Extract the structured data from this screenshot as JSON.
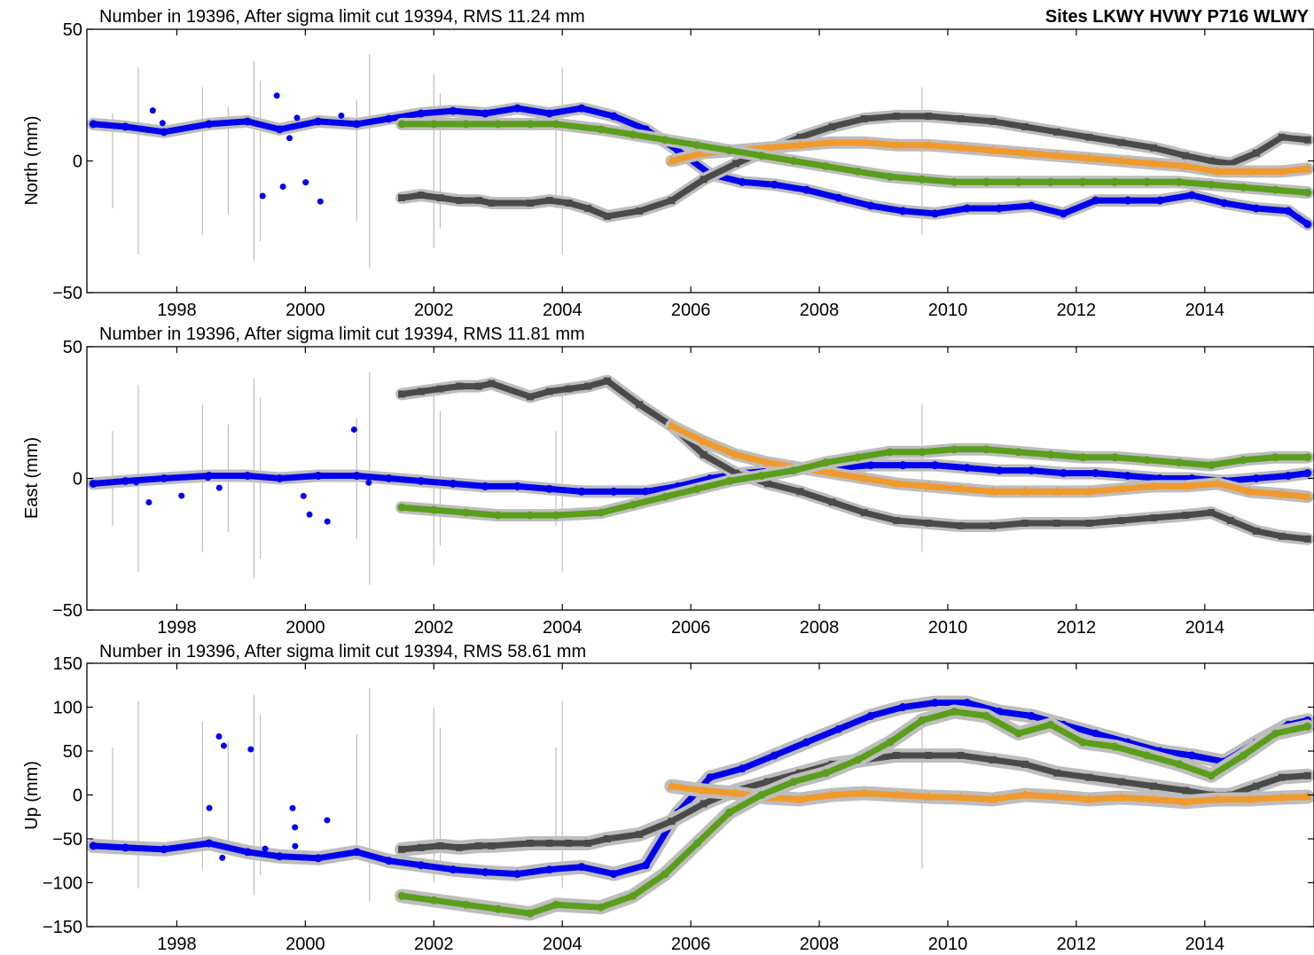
{
  "figure_title": "Sites LKWY HVWY P716 WLWY",
  "colors": {
    "LKWY": "#0000ee",
    "HVWY": "#4a4a4a",
    "P716": "#f09a2e",
    "WLWY": "#5a9e1c",
    "error_bar": "#bdbdbd",
    "frame": "#000000"
  },
  "chart_data": [
    {
      "type": "scatter",
      "title": "Number in  19396, After sigma limit cut  19394, RMS  11.24 mm",
      "ylabel": "North (mm)",
      "xlim": [
        1996.6,
        2015.7
      ],
      "ylim": [
        -50,
        50
      ],
      "xticks": [
        1998,
        2000,
        2002,
        2004,
        2006,
        2008,
        2010,
        2012,
        2014
      ],
      "yticks": [
        -50,
        0,
        50
      ],
      "grid": false,
      "series": [
        {
          "marker": "circle",
          "color_key": "LKWY",
          "x": [
            1996.7,
            1997.2,
            1997.8,
            1998.5,
            1999.1,
            1999.6,
            2000.2,
            2000.8,
            2001.3,
            2001.8,
            2002.3,
            2002.8,
            2003.3,
            2003.8,
            2004.3,
            2004.8,
            2005.3,
            2005.8,
            2006.3,
            2006.8,
            2007.3,
            2007.8,
            2008.3,
            2008.8,
            2009.3,
            2009.8,
            2010.3,
            2010.8,
            2011.3,
            2011.8,
            2012.3,
            2012.8,
            2013.3,
            2013.8,
            2014.3,
            2014.8,
            2015.3,
            2015.6
          ],
          "y": [
            14,
            13,
            11,
            14,
            15,
            12,
            15,
            14,
            16,
            18,
            19,
            18,
            20,
            18,
            20,
            17,
            12,
            4,
            -5,
            -8,
            -9,
            -11,
            -14,
            -17,
            -19,
            -20,
            -18,
            -18,
            -17,
            -20,
            -15,
            -15,
            -15,
            -13,
            -16,
            -18,
            -19,
            -24
          ]
        },
        {
          "marker": "square",
          "color_key": "HVWY",
          "x": [
            2001.5,
            2001.8,
            2002.1,
            2002.4,
            2002.7,
            2002.9,
            2003.5,
            2003.8,
            2004.1,
            2004.4,
            2004.7,
            2005.2,
            2005.7,
            2006.2,
            2006.7,
            2007.2,
            2007.7,
            2008.2,
            2008.7,
            2009.2,
            2009.7,
            2010.2,
            2010.7,
            2011.2,
            2011.7,
            2012.2,
            2012.7,
            2013.2,
            2013.7,
            2014.1,
            2014.4,
            2014.8,
            2015.2,
            2015.6
          ],
          "y": [
            -14,
            -13,
            -14,
            -15,
            -15,
            -16,
            -16,
            -15,
            -16,
            -18,
            -21,
            -19,
            -15,
            -7,
            -1,
            4,
            9,
            13,
            16,
            17,
            17,
            16,
            15,
            13,
            11,
            9,
            7,
            5,
            2,
            0,
            -1,
            3,
            9,
            8
          ]
        },
        {
          "marker": "triangle",
          "color_key": "P716",
          "x": [
            2005.7,
            2006.2,
            2006.7,
            2007.2,
            2007.7,
            2008.2,
            2008.7,
            2009.2,
            2009.7,
            2010.2,
            2010.7,
            2011.2,
            2011.7,
            2012.2,
            2012.7,
            2013.2,
            2013.7,
            2014.2,
            2014.7,
            2015.2,
            2015.6
          ],
          "y": [
            0,
            3,
            4,
            5,
            6,
            7,
            7,
            6,
            6,
            5,
            4,
            3,
            2,
            1,
            0,
            -1,
            -2,
            -4,
            -4,
            -4,
            -3
          ]
        },
        {
          "marker": "circle",
          "color_key": "WLWY",
          "x": [
            2001.5,
            2002.0,
            2002.5,
            2003.0,
            2003.5,
            2003.9,
            2004.6,
            2005.1,
            2005.6,
            2006.1,
            2006.6,
            2007.1,
            2007.6,
            2008.1,
            2008.6,
            2009.1,
            2009.6,
            2010.1,
            2010.6,
            2011.1,
            2011.6,
            2012.1,
            2012.6,
            2013.1,
            2013.6,
            2014.1,
            2014.6,
            2015.1,
            2015.6
          ],
          "y": [
            14,
            14,
            14,
            14,
            14,
            14,
            12,
            10,
            8,
            6,
            4,
            2,
            0,
            -2,
            -4,
            -6,
            -7,
            -8,
            -8,
            -8,
            -8,
            -8,
            -8,
            -8,
            -8,
            -9,
            -10,
            -11,
            -12
          ]
        }
      ]
    },
    {
      "type": "scatter",
      "title": "Number in  19396, After sigma limit cut  19394, RMS  11.81 mm",
      "ylabel": "East  (mm)",
      "xlim": [
        1996.6,
        2015.7
      ],
      "ylim": [
        -50,
        50
      ],
      "xticks": [
        1998,
        2000,
        2002,
        2004,
        2006,
        2008,
        2010,
        2012,
        2014
      ],
      "yticks": [
        -50,
        0,
        50
      ],
      "grid": false,
      "series": [
        {
          "marker": "circle",
          "color_key": "LKWY",
          "x": [
            1996.7,
            1997.2,
            1997.8,
            1998.5,
            1999.1,
            1999.6,
            2000.2,
            2000.8,
            2001.3,
            2001.8,
            2002.3,
            2002.8,
            2003.3,
            2003.8,
            2004.3,
            2004.8,
            2005.3,
            2005.8,
            2006.3,
            2006.8,
            2007.3,
            2007.8,
            2008.3,
            2008.8,
            2009.3,
            2009.8,
            2010.3,
            2010.8,
            2011.3,
            2011.8,
            2012.3,
            2012.8,
            2013.3,
            2013.8,
            2014.3,
            2014.8,
            2015.3,
            2015.6
          ],
          "y": [
            -2,
            -1,
            0,
            1,
            1,
            0,
            1,
            1,
            0,
            -1,
            -2,
            -3,
            -3,
            -4,
            -5,
            -5,
            -5,
            -3,
            0,
            2,
            3,
            4,
            4,
            5,
            5,
            5,
            4,
            3,
            3,
            2,
            2,
            1,
            0,
            0,
            -1,
            0,
            1,
            2
          ]
        },
        {
          "marker": "square",
          "color_key": "HVWY",
          "x": [
            2001.5,
            2001.8,
            2002.1,
            2002.4,
            2002.7,
            2002.9,
            2003.5,
            2003.8,
            2004.1,
            2004.4,
            2004.7,
            2005.2,
            2005.7,
            2006.2,
            2006.7,
            2007.2,
            2007.7,
            2008.2,
            2008.7,
            2009.2,
            2009.7,
            2010.2,
            2010.7,
            2011.2,
            2011.7,
            2012.2,
            2012.7,
            2013.2,
            2013.7,
            2014.1,
            2014.4,
            2014.8,
            2015.2,
            2015.6
          ],
          "y": [
            32,
            33,
            34,
            35,
            35,
            36,
            31,
            33,
            34,
            35,
            37,
            28,
            20,
            9,
            2,
            -2,
            -5,
            -9,
            -13,
            -16,
            -17,
            -18,
            -18,
            -17,
            -17,
            -17,
            -16,
            -15,
            -14,
            -13,
            -16,
            -20,
            -22,
            -23
          ]
        },
        {
          "marker": "triangle",
          "color_key": "P716",
          "x": [
            2005.7,
            2006.2,
            2006.7,
            2007.2,
            2007.7,
            2008.2,
            2008.7,
            2009.2,
            2009.7,
            2010.2,
            2010.7,
            2011.2,
            2011.7,
            2012.2,
            2012.7,
            2013.2,
            2013.7,
            2014.2,
            2014.7,
            2015.2,
            2015.6
          ],
          "y": [
            20,
            14,
            9,
            6,
            4,
            2,
            0,
            -2,
            -3,
            -4,
            -5,
            -5,
            -5,
            -5,
            -4,
            -3,
            -3,
            -2,
            -5,
            -6,
            -7
          ]
        },
        {
          "marker": "circle",
          "color_key": "WLWY",
          "x": [
            2001.5,
            2002.0,
            2002.5,
            2003.0,
            2003.5,
            2003.9,
            2004.6,
            2005.1,
            2005.6,
            2006.1,
            2006.6,
            2007.1,
            2007.6,
            2008.1,
            2008.6,
            2009.1,
            2009.6,
            2010.1,
            2010.6,
            2011.1,
            2011.6,
            2012.1,
            2012.6,
            2013.1,
            2013.6,
            2014.1,
            2014.6,
            2015.1,
            2015.6
          ],
          "y": [
            -11,
            -12,
            -13,
            -14,
            -14,
            -14,
            -13,
            -10,
            -7,
            -4,
            -1,
            1,
            3,
            6,
            8,
            10,
            10,
            11,
            11,
            10,
            9,
            8,
            8,
            7,
            6,
            5,
            7,
            8,
            8
          ]
        }
      ]
    },
    {
      "type": "scatter",
      "title": "Number in  19396, After sigma limit cut  19394, RMS  58.61 mm",
      "ylabel": "Up  (mm)",
      "xlim": [
        1996.6,
        2015.7
      ],
      "ylim": [
        -150,
        150
      ],
      "xticks": [
        1998,
        2000,
        2002,
        2004,
        2006,
        2008,
        2010,
        2012,
        2014
      ],
      "yticks": [
        -150,
        -100,
        -50,
        0,
        50,
        100,
        150
      ],
      "grid": false,
      "series": [
        {
          "marker": "circle",
          "color_key": "LKWY",
          "x": [
            1996.7,
            1997.2,
            1997.8,
            1998.5,
            1999.1,
            1999.6,
            2000.2,
            2000.8,
            2001.3,
            2001.8,
            2002.3,
            2002.8,
            2003.3,
            2003.8,
            2004.3,
            2004.8,
            2005.3,
            2005.8,
            2006.3,
            2006.8,
            2007.3,
            2007.8,
            2008.3,
            2008.8,
            2009.3,
            2009.8,
            2010.3,
            2010.8,
            2011.3,
            2011.8,
            2012.3,
            2012.8,
            2013.3,
            2013.8,
            2014.3,
            2014.8,
            2015.3,
            2015.6
          ],
          "y": [
            -58,
            -60,
            -62,
            -55,
            -65,
            -70,
            -72,
            -65,
            -75,
            -80,
            -85,
            -88,
            -90,
            -85,
            -82,
            -90,
            -80,
            -20,
            20,
            30,
            45,
            60,
            75,
            90,
            100,
            105,
            105,
            95,
            90,
            80,
            70,
            60,
            50,
            45,
            38,
            60,
            80,
            85
          ]
        },
        {
          "marker": "square",
          "color_key": "HVWY",
          "x": [
            2001.5,
            2001.8,
            2002.1,
            2002.4,
            2002.7,
            2002.9,
            2003.5,
            2003.8,
            2004.1,
            2004.4,
            2004.7,
            2005.2,
            2005.7,
            2006.2,
            2006.7,
            2007.2,
            2007.7,
            2008.2,
            2008.7,
            2009.2,
            2009.7,
            2010.2,
            2010.7,
            2011.2,
            2011.7,
            2012.2,
            2012.7,
            2013.2,
            2013.7,
            2014.1,
            2014.4,
            2014.8,
            2015.2,
            2015.6
          ],
          "y": [
            -62,
            -60,
            -58,
            -60,
            -58,
            -58,
            -55,
            -55,
            -55,
            -55,
            -50,
            -45,
            -30,
            -10,
            5,
            15,
            25,
            35,
            40,
            45,
            45,
            45,
            40,
            35,
            25,
            20,
            15,
            10,
            5,
            0,
            0,
            10,
            20,
            22
          ]
        },
        {
          "marker": "triangle",
          "color_key": "P716",
          "x": [
            2005.7,
            2006.2,
            2006.7,
            2007.2,
            2007.7,
            2008.2,
            2008.7,
            2009.2,
            2009.7,
            2010.2,
            2010.7,
            2011.2,
            2011.7,
            2012.2,
            2012.7,
            2013.2,
            2013.7,
            2014.2,
            2014.7,
            2015.2,
            2015.6
          ],
          "y": [
            10,
            5,
            2,
            -3,
            -5,
            0,
            2,
            0,
            -2,
            -3,
            -5,
            0,
            -2,
            -5,
            -3,
            -5,
            -8,
            -5,
            -5,
            -3,
            -2
          ]
        },
        {
          "marker": "circle",
          "color_key": "WLWY",
          "x": [
            2001.5,
            2002.0,
            2002.5,
            2003.0,
            2003.5,
            2003.9,
            2004.6,
            2005.1,
            2005.6,
            2006.1,
            2006.6,
            2007.1,
            2007.6,
            2008.1,
            2008.6,
            2009.1,
            2009.6,
            2010.1,
            2010.6,
            2011.1,
            2011.6,
            2012.1,
            2012.6,
            2013.1,
            2013.6,
            2014.1,
            2014.6,
            2015.1,
            2015.6
          ],
          "y": [
            -115,
            -120,
            -125,
            -130,
            -135,
            -125,
            -128,
            -115,
            -90,
            -55,
            -20,
            0,
            15,
            25,
            40,
            60,
            85,
            95,
            90,
            70,
            80,
            60,
            55,
            45,
            35,
            22,
            45,
            70,
            78
          ]
        }
      ]
    }
  ]
}
